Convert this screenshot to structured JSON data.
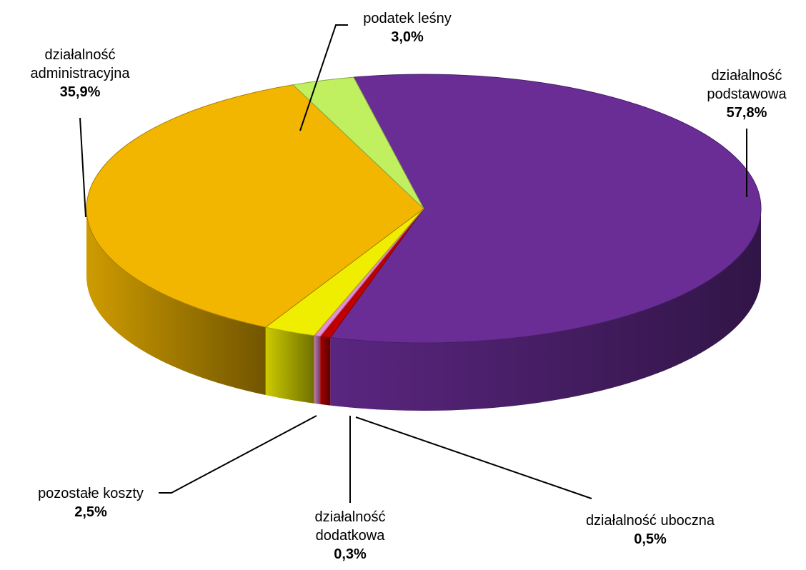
{
  "chart_data": {
    "type": "pie",
    "style": "3d",
    "categories": [
      "działalność podstawowa",
      "działalność uboczna",
      "działalność dodatkowa",
      "pozostałe koszty",
      "działalność administracyjna",
      "podatek leśny"
    ],
    "values": [
      57.8,
      0.5,
      0.3,
      2.5,
      35.9,
      3.0
    ],
    "value_labels": [
      "57,8%",
      "0,5%",
      "0,3%",
      "2,5%",
      "35,9%",
      "3,0%"
    ],
    "colors": [
      "#6A2D96",
      "#C00000",
      "#E48CD6",
      "#F0EE00",
      "#F2B600",
      "#C0F060"
    ],
    "data_labels": [
      {
        "lines": [
          "działalność",
          "podstawowa"
        ],
        "value": "57,8%"
      },
      {
        "lines": [
          "działalność uboczna"
        ],
        "value": "0,5%"
      },
      {
        "lines": [
          "działalność",
          "dodatkowa"
        ],
        "value": "0,3%"
      },
      {
        "lines": [
          "pozostałe koszty"
        ],
        "value": "2,5%"
      },
      {
        "lines": [
          "działalność",
          "administracyjna"
        ],
        "value": "35,9%"
      },
      {
        "lines": [
          "podatek leśny"
        ],
        "value": "3,0%"
      }
    ],
    "title": "",
    "legend": "none"
  }
}
